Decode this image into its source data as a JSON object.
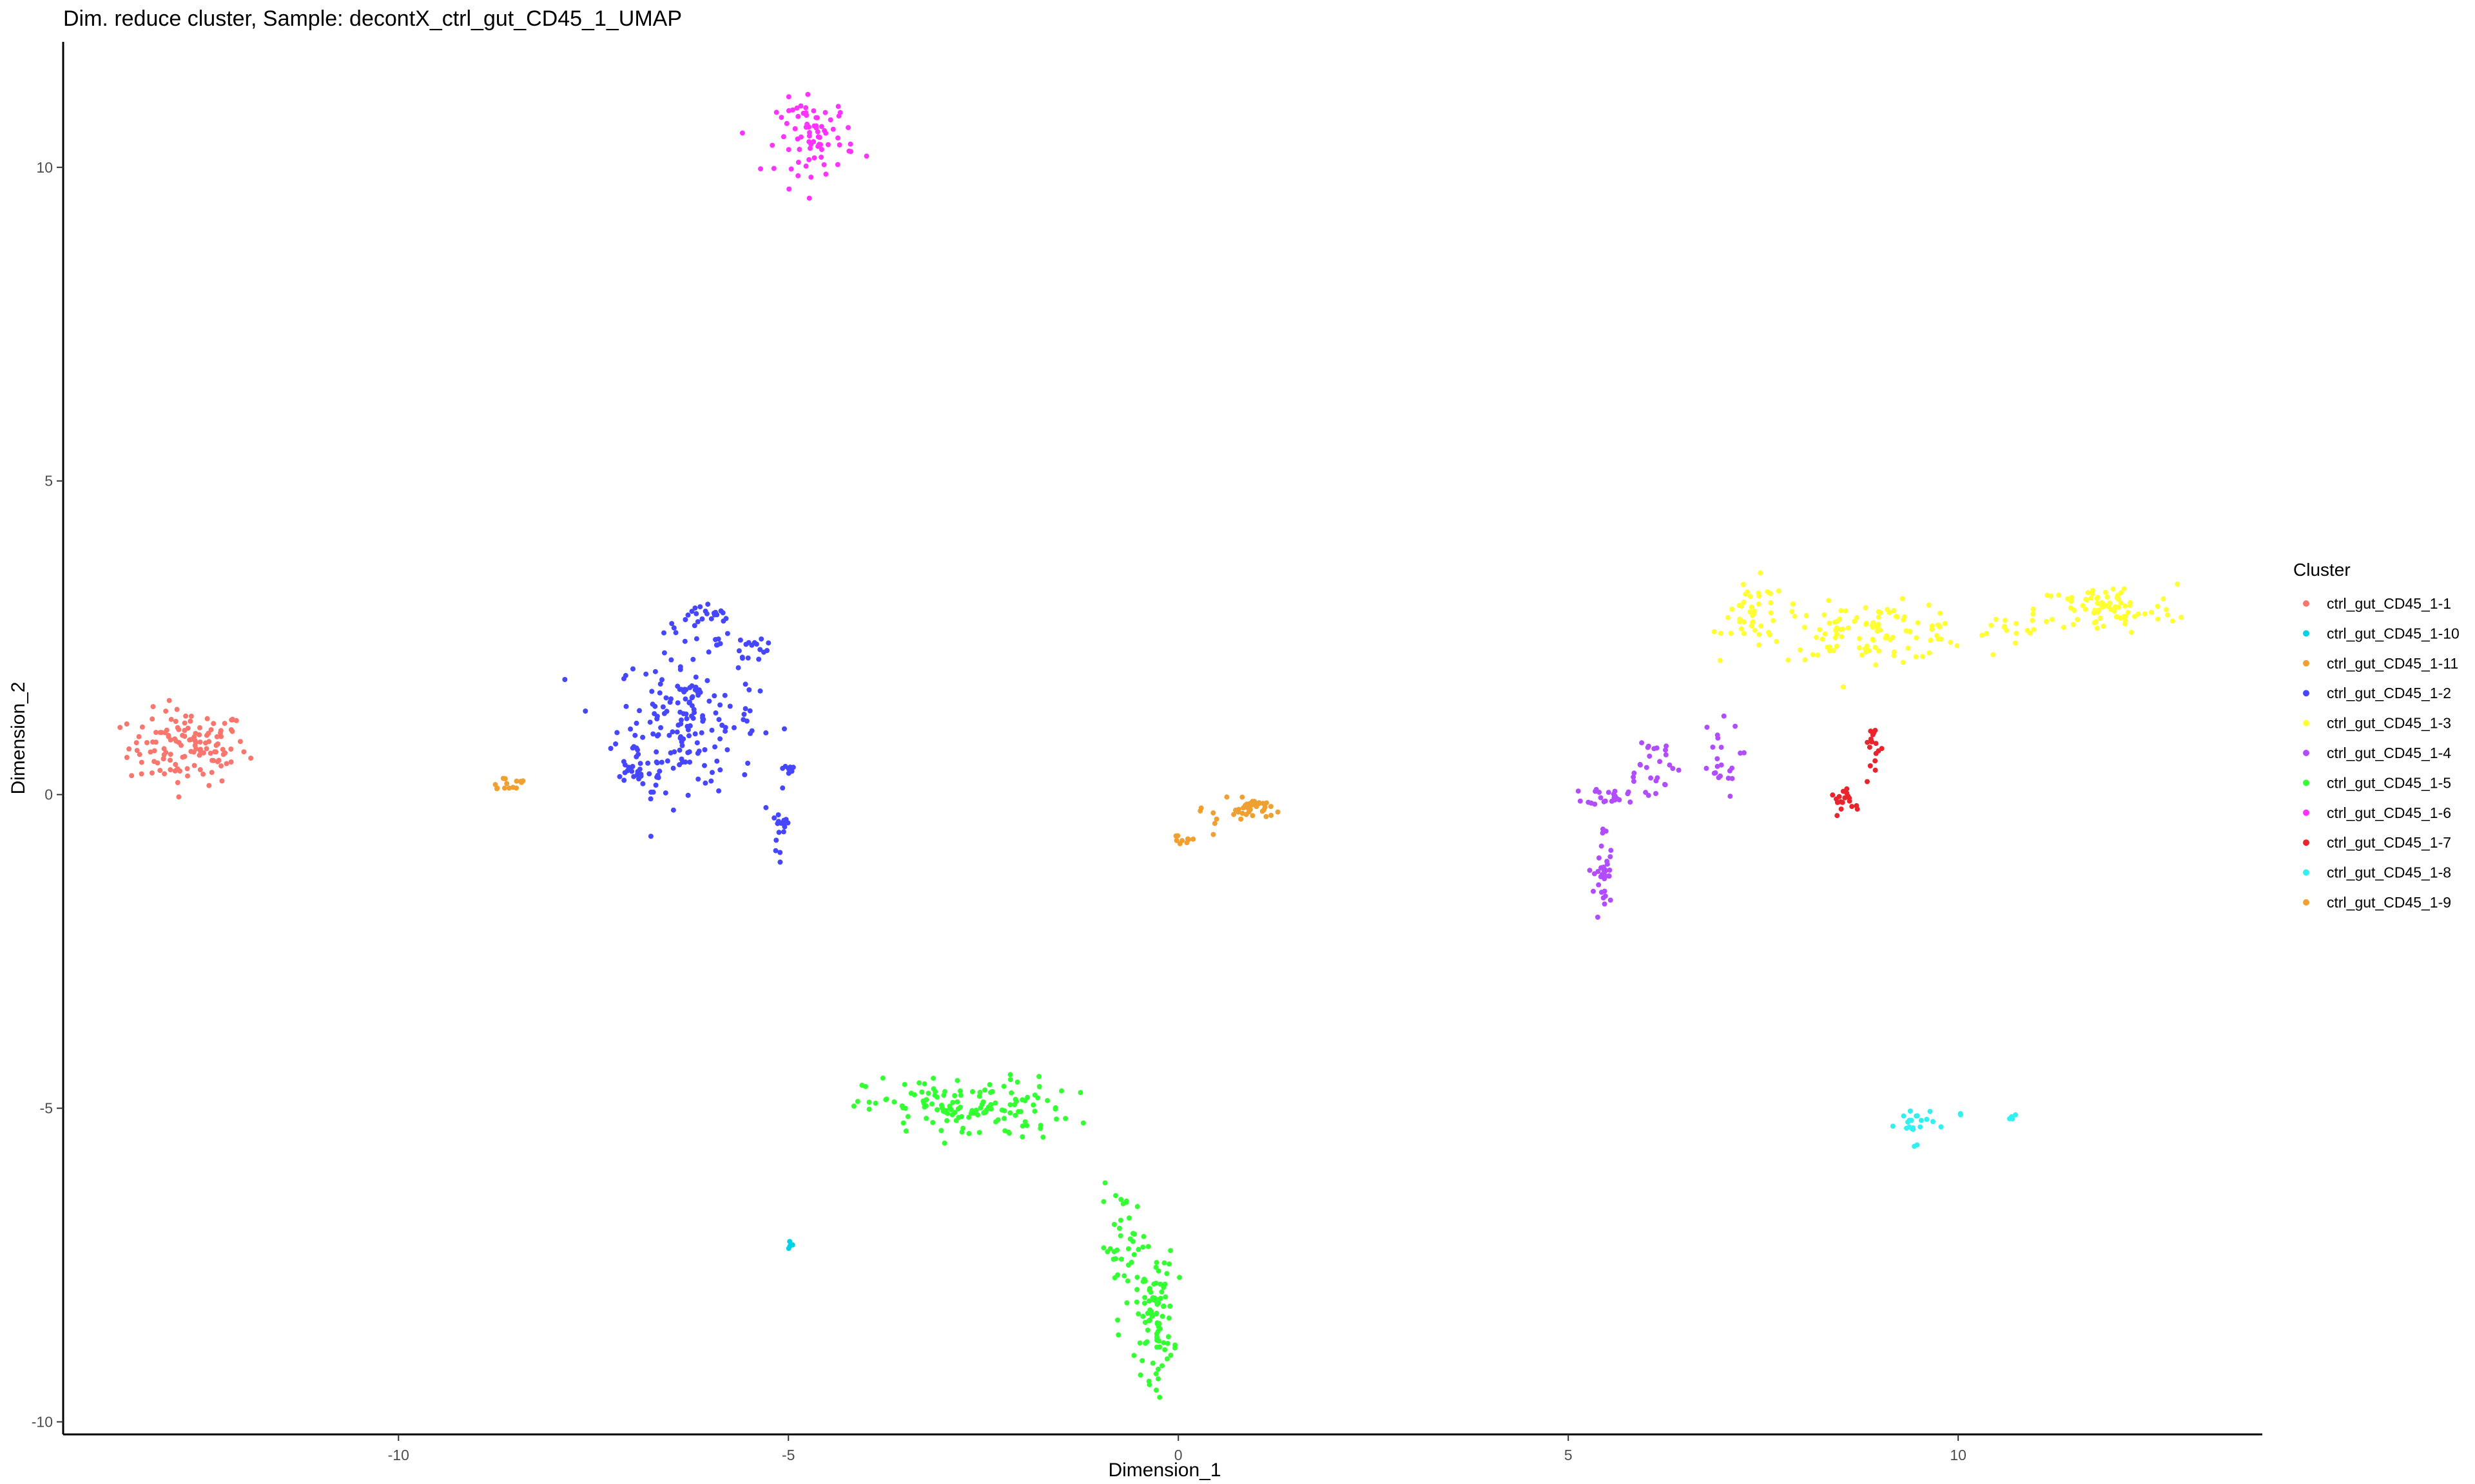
{
  "chart_data": {
    "type": "scatter",
    "title": "Dim. reduce cluster, Sample: decontX_ctrl_gut_CD45_1_UMAP",
    "xlabel": "Dimension_1",
    "ylabel": "Dimension_2",
    "xlim": [
      -14.3,
      13.9
    ],
    "ylim": [
      -10.2,
      12.0
    ],
    "xticks": [
      -10,
      -5,
      0,
      5,
      10
    ],
    "yticks": [
      -10,
      -5,
      0,
      5,
      10
    ],
    "grid": false,
    "legend": {
      "title": "Cluster",
      "position": "right"
    },
    "series": [
      {
        "name": "ctrl_gut_CD45_1-1",
        "color": "#F8766D",
        "clusters": [
          {
            "cx": -12.7,
            "cy": 0.75,
            "sx": 0.38,
            "sy": 0.3,
            "n": 130
          }
        ]
      },
      {
        "name": "ctrl_gut_CD45_1-10",
        "color": "#00D2E6",
        "clusters": [
          {
            "cx": -5.0,
            "cy": -7.15,
            "sx": 0.05,
            "sy": 0.05,
            "n": 4
          }
        ]
      },
      {
        "name": "ctrl_gut_CD45_1-11",
        "color": "#F0A030",
        "clusters": [
          {
            "cx": -8.6,
            "cy": 0.18,
            "sx": 0.15,
            "sy": 0.07,
            "n": 14
          }
        ]
      },
      {
        "name": "ctrl_gut_CD45_1-2",
        "color": "#4646FF",
        "clusters": [
          {
            "cx": -6.3,
            "cy": 1.2,
            "sx": 0.45,
            "sy": 0.55,
            "n": 170
          },
          {
            "cx": -6.1,
            "cy": 2.8,
            "sx": 0.25,
            "sy": 0.12,
            "n": 25
          },
          {
            "cx": -5.5,
            "cy": 2.4,
            "sx": 0.2,
            "sy": 0.2,
            "n": 18
          },
          {
            "cx": -6.9,
            "cy": 0.35,
            "sx": 0.22,
            "sy": 0.12,
            "n": 30
          },
          {
            "cx": -5.1,
            "cy": -0.55,
            "sx": 0.06,
            "sy": 0.12,
            "n": 14
          },
          {
            "cx": -5.0,
            "cy": 0.4,
            "sx": 0.05,
            "sy": 0.08,
            "n": 8
          },
          {
            "cx": -5.15,
            "cy": -1.0,
            "sx": 0.03,
            "sy": 0.05,
            "n": 3
          }
        ]
      },
      {
        "name": "ctrl_gut_CD45_1-3",
        "color": "#FFFF33",
        "clusters": [
          {
            "cx": 7.4,
            "cy": 2.85,
            "sx": 0.2,
            "sy": 0.28,
            "n": 40
          },
          {
            "cx": 8.9,
            "cy": 2.6,
            "sx": 0.65,
            "sy": 0.22,
            "n": 110
          },
          {
            "cx": 11.9,
            "cy": 2.95,
            "sx": 0.45,
            "sy": 0.2,
            "n": 80
          },
          {
            "cx": 10.8,
            "cy": 2.7,
            "sx": 0.35,
            "sy": 0.1,
            "n": 15
          }
        ]
      },
      {
        "name": "ctrl_gut_CD45_1-4",
        "color": "#B24DFF",
        "clusters": [
          {
            "cx": 5.45,
            "cy": -1.3,
            "sx": 0.06,
            "sy": 0.4,
            "n": 35
          },
          {
            "cx": 5.6,
            "cy": -0.02,
            "sx": 0.18,
            "sy": 0.07,
            "n": 25
          },
          {
            "cx": 6.05,
            "cy": 0.5,
            "sx": 0.2,
            "sy": 0.25,
            "n": 25
          },
          {
            "cx": 6.9,
            "cy": 0.55,
            "sx": 0.15,
            "sy": 0.3,
            "n": 22
          }
        ]
      },
      {
        "name": "ctrl_gut_CD45_1-5",
        "color": "#33FF33",
        "clusters": [
          {
            "cx": -2.7,
            "cy": -5.0,
            "sx": 0.65,
            "sy": 0.25,
            "n": 140
          },
          {
            "cx": -0.3,
            "cy": -8.3,
            "sx": 0.12,
            "sy": 0.5,
            "n": 90
          },
          {
            "cx": -0.7,
            "cy": -7.2,
            "sx": 0.15,
            "sy": 0.45,
            "n": 40
          }
        ]
      },
      {
        "name": "ctrl_gut_CD45_1-6",
        "color": "#FF33FF",
        "clusters": [
          {
            "cx": -4.65,
            "cy": 10.5,
            "sx": 0.25,
            "sy": 0.3,
            "n": 75
          },
          {
            "cx": -4.75,
            "cy": 9.5,
            "sx": 0.02,
            "sy": 0.02,
            "n": 1
          }
        ]
      },
      {
        "name": "ctrl_gut_CD45_1-7",
        "color": "#E8252D",
        "clusters": [
          {
            "cx": 8.6,
            "cy": -0.1,
            "sx": 0.12,
            "sy": 0.08,
            "n": 18
          },
          {
            "cx": 8.9,
            "cy": 0.75,
            "sx": 0.06,
            "sy": 0.25,
            "n": 16
          }
        ]
      },
      {
        "name": "ctrl_gut_CD45_1-8",
        "color": "#33F0F0",
        "clusters": [
          {
            "cx": 9.45,
            "cy": -5.25,
            "sx": 0.12,
            "sy": 0.15,
            "n": 22
          },
          {
            "cx": 10.0,
            "cy": -5.1,
            "sx": 0.02,
            "sy": 0.02,
            "n": 2
          },
          {
            "cx": 10.7,
            "cy": -5.15,
            "sx": 0.03,
            "sy": 0.03,
            "n": 4
          }
        ]
      },
      {
        "name": "ctrl_gut_CD45_1-9",
        "color": "#F0A030",
        "clusters": [
          {
            "cx": 0.95,
            "cy": -0.22,
            "sx": 0.12,
            "sy": 0.08,
            "n": 35
          },
          {
            "cx": 0.05,
            "cy": -0.72,
            "sx": 0.08,
            "sy": 0.06,
            "n": 9
          },
          {
            "cx": 0.45,
            "cy": -0.35,
            "sx": 0.15,
            "sy": 0.12,
            "n": 8
          }
        ]
      }
    ]
  }
}
